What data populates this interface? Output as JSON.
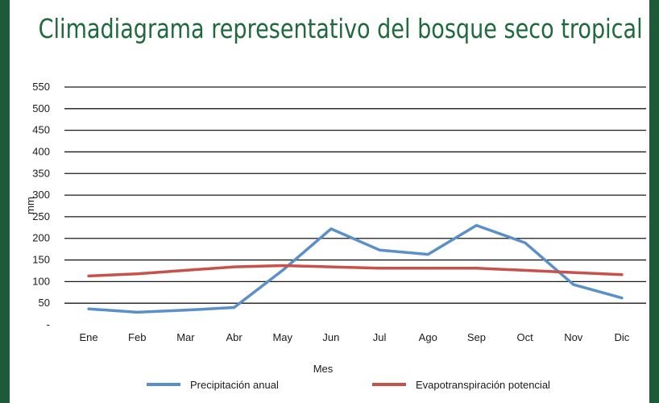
{
  "chart_data": {
    "type": "line",
    "title": "Climadiagrama representativo del bosque seco tropical",
    "xlabel": "Mes",
    "ylabel": "mm",
    "categories": [
      "Ene",
      "Feb",
      "Mar",
      "Abr",
      "May",
      "Jun",
      "Jul",
      "Ago",
      "Sep",
      "Oct",
      "Nov",
      "Dic"
    ],
    "ylim": [
      0,
      550
    ],
    "yticks": [
      0,
      50,
      100,
      150,
      200,
      250,
      300,
      350,
      400,
      450,
      500,
      550
    ],
    "ytick_labels": [
      "-",
      "50",
      "100",
      "150",
      "200",
      "250",
      "300",
      "350",
      "400",
      "450",
      "500",
      "550"
    ],
    "grid": true,
    "legend_position": "bottom",
    "series": [
      {
        "name": "Precipitación anual",
        "color": "#5a8fc9",
        "values": [
          37,
          29,
          34,
          40,
          126,
          222,
          173,
          163,
          230,
          190,
          93,
          62
        ]
      },
      {
        "name": "Evapotranspiración potencial",
        "color": "#c9514c",
        "values": [
          113,
          118,
          126,
          134,
          137,
          134,
          131,
          131,
          131,
          126,
          121,
          116
        ]
      }
    ]
  }
}
